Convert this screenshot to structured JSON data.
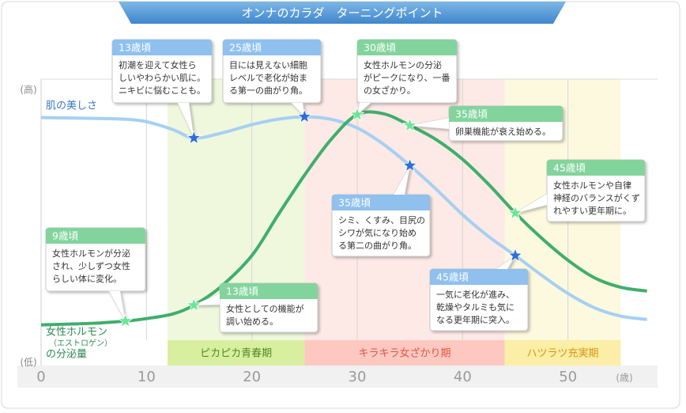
{
  "chart_data": {
    "type": "line",
    "title": "オンナのカラダ　ターニングポイント",
    "x_unit": "(歳)",
    "xlim": [
      0,
      58.5
    ],
    "xticks": [
      0,
      10,
      20,
      30,
      40,
      50
    ],
    "ylim": [
      -1,
      104
    ],
    "yticks": [
      {
        "value": 100,
        "label": "(高)"
      },
      {
        "value": 0,
        "label": "(低)"
      }
    ],
    "grid": true,
    "x": [
      0,
      5,
      8,
      10,
      12.5,
      14.5,
      17,
      20,
      22.5,
      25,
      27.5,
      30,
      32.5,
      35,
      37.5,
      40,
      42.5,
      45,
      47.5,
      50,
      52.5,
      55,
      57.5
    ],
    "series": [
      {
        "name": [
          "肌の美しさ"
        ],
        "color": "#a6d0f2",
        "star_color": "#2f6fd6",
        "callout_color": "#8fc0ee",
        "text_color": "#3b78c8",
        "values": [
          89.9,
          89.6,
          89.3,
          88.4,
          85.5,
          82.4,
          84.1,
          87.3,
          89.3,
          90.2,
          89.3,
          86.1,
          80.1,
          72.3,
          63.6,
          54.3,
          46.2,
          39.3,
          32.1,
          25.4,
          20.2,
          17.1,
          15.9
        ]
      },
      {
        "name": [
          "女性ホルモン",
          "（エストロゲン）",
          "の分泌量"
        ],
        "color": "#3fae6c",
        "star_color": "#6be596",
        "callout_color": "#82d49c",
        "text_color": "#2f8a55",
        "values": [
          13.9,
          14.5,
          15.3,
          16.2,
          17.9,
          21.1,
          27.7,
          39.3,
          54.3,
          68.8,
          81.8,
          91.0,
          91.3,
          87.0,
          81.8,
          74.6,
          65.3,
          54.9,
          45.7,
          37.6,
          31.2,
          27.7,
          26.3
        ]
      }
    ],
    "bands": [
      {
        "label": "ピカピカ青春期",
        "start": 12,
        "end": 25,
        "fill": "#eff8dd",
        "bar": "#d8efa0",
        "text": "#4f8a24"
      },
      {
        "label": "キラキラ女ざかり期",
        "start": 25,
        "end": 44,
        "fill": "#fde9e5",
        "bar": "#fcc8bf",
        "text": "#e0554a"
      },
      {
        "label": "ハツラツ充実期",
        "start": 44,
        "end": 55,
        "fill": "#fdf9df",
        "bar": "#fbeea6",
        "text": "#d49612"
      }
    ],
    "callouts": [
      {
        "age": "13歳頃",
        "series": 0,
        "point": 5,
        "lines": [
          "初潮を迎えて女性ら",
          "しいやわらかい肌に。",
          "ニキビに悩むことも。"
        ]
      },
      {
        "age": "25歳頃",
        "series": 0,
        "point": 9,
        "lines": [
          "目には見えない細胞",
          "レベルで老化が始ま",
          "る第一の曲がり角。"
        ]
      },
      {
        "age": "30歳頃",
        "series": 1,
        "point": 11,
        "lines": [
          "女性ホルモンの分泌",
          "がピークになり、一番",
          "の女ざかり。"
        ]
      },
      {
        "age": "35歳頃",
        "series": 1,
        "point": 13,
        "lines": [
          "卵巣機能が衰え始める。"
        ]
      },
      {
        "age": "45歳頃",
        "series": 1,
        "point": 17,
        "lines": [
          "女性ホルモンや自律",
          "神経のバランスがくず",
          "れやすい更年期に。"
        ]
      },
      {
        "age": "35歳頃",
        "series": 0,
        "point": 13,
        "lines": [
          "シミ、くすみ、目尻の",
          "シワが気になり始め",
          "る第二の曲がり角。"
        ]
      },
      {
        "age": "45歳頃",
        "series": 0,
        "point": 17,
        "lines": [
          "一気に老化が進み、",
          "乾燥やタルミも気に",
          "なる更年期に突入。"
        ]
      },
      {
        "age": "9歳頃",
        "series": 1,
        "point": 2,
        "lines": [
          "女性ホルモンが分泌",
          "され、少しずつ女性",
          "らしい体に変化。"
        ]
      },
      {
        "age": "13歳頃",
        "series": 1,
        "point": 5,
        "lines": [
          "女性としての機能が",
          "調い始める。"
        ]
      }
    ]
  }
}
